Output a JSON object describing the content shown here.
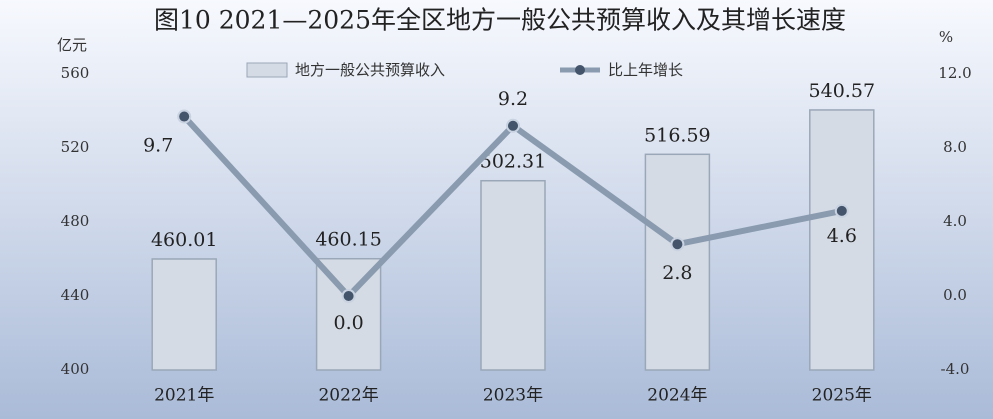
{
  "chart_data": {
    "type": "bar",
    "title": "图10 2021—2025年全区地方一般公共预算收入及其增长速度",
    "y_label": "亿元",
    "y2_label": "%",
    "categories": [
      "2021年",
      "2022年",
      "2023年",
      "2024年",
      "2025年"
    ],
    "series": [
      {
        "name": "地方一般公共预算收入",
        "type": "bar",
        "color": "#d5dbe4",
        "values": [
          460.01,
          460.15,
          502.31,
          516.59,
          540.57
        ]
      },
      {
        "name": "比上年增长",
        "type": "line",
        "axis": "y2",
        "color": "#8a9bb0",
        "values": [
          9.7,
          0.0,
          9.2,
          2.8,
          4.6
        ],
        "value_labels": [
          "9.7",
          "0.0",
          "9.2",
          "2.8",
          "4.6"
        ]
      }
    ],
    "ylim": [
      400,
      560
    ],
    "yticks": [
      400,
      440,
      480,
      520,
      560
    ],
    "y2lim": [
      -4,
      12
    ],
    "y2ticks": [
      {
        "value": -4,
        "label": "-4.0"
      },
      {
        "value": 0,
        "label": "0.0"
      },
      {
        "value": 4,
        "label": "4.0"
      },
      {
        "value": 8,
        "label": "8.0"
      },
      {
        "value": 12,
        "label": "12.0"
      }
    ],
    "grid": false
  }
}
